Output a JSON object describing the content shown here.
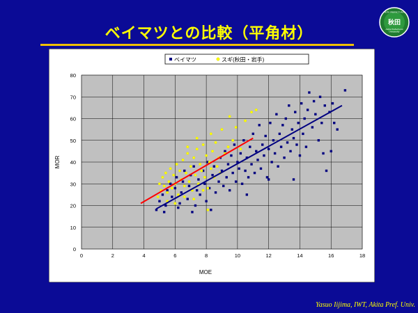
{
  "slide": {
    "title": "ベイマツとの比較（平角材）",
    "credit": "Yasuo Iijima, IWT, Akita Pref.  Univ."
  },
  "logo": {
    "arc_text": "AKITA PREFECTURAL",
    "mark_text": "秋田",
    "subtext_1": "Akita Prefectural",
    "subtext_2": "University"
  },
  "colors": {
    "background": "#0b0b96",
    "title": "#ffff00",
    "series_bm": "#000080",
    "series_sugi": "#ffff00",
    "fit_bm": "#000080",
    "fit_sugi": "#ff0000",
    "plot_bg": "#c0c0c0",
    "chart_bg": "#ffffff"
  },
  "chart_data": {
    "type": "scatter",
    "title": "",
    "xlabel": "MOE",
    "ylabel": "MOR",
    "xlim": [
      0,
      18
    ],
    "ylim": [
      0,
      80
    ],
    "xticks": [
      0,
      2,
      4,
      6,
      8,
      10,
      12,
      14,
      16,
      18
    ],
    "yticks": [
      0,
      10,
      20,
      30,
      40,
      50,
      60,
      70,
      80
    ],
    "grid": true,
    "legend_position": "top-center",
    "series": [
      {
        "name": "ベイマツ",
        "marker": "square",
        "points": [
          [
            4.8,
            18
          ],
          [
            5.0,
            22
          ],
          [
            5.2,
            25
          ],
          [
            5.4,
            20
          ],
          [
            5.5,
            27
          ],
          [
            5.7,
            30
          ],
          [
            5.8,
            24
          ],
          [
            6.0,
            28
          ],
          [
            6.1,
            33
          ],
          [
            6.2,
            19
          ],
          [
            6.4,
            26
          ],
          [
            6.5,
            31
          ],
          [
            6.6,
            36
          ],
          [
            6.8,
            23
          ],
          [
            6.9,
            29
          ],
          [
            7.0,
            34
          ],
          [
            7.1,
            17
          ],
          [
            7.2,
            38
          ],
          [
            7.4,
            27
          ],
          [
            7.5,
            32
          ],
          [
            7.6,
            25
          ],
          [
            7.8,
            36
          ],
          [
            7.9,
            30
          ],
          [
            8.0,
            22
          ],
          [
            8.1,
            40
          ],
          [
            8.2,
            28
          ],
          [
            8.4,
            34
          ],
          [
            8.5,
            38
          ],
          [
            8.6,
            26
          ],
          [
            8.8,
            31
          ],
          [
            8.9,
            42
          ],
          [
            9.0,
            36
          ],
          [
            9.1,
            29
          ],
          [
            9.2,
            45
          ],
          [
            9.3,
            33
          ],
          [
            9.4,
            39
          ],
          [
            9.5,
            27
          ],
          [
            9.6,
            43
          ],
          [
            9.7,
            35
          ],
          [
            9.8,
            48
          ],
          [
            9.9,
            31
          ],
          [
            10.0,
            40
          ],
          [
            10.1,
            37
          ],
          [
            10.2,
            44
          ],
          [
            10.3,
            30
          ],
          [
            10.4,
            50
          ],
          [
            10.5,
            36
          ],
          [
            10.6,
            42
          ],
          [
            10.7,
            33
          ],
          [
            10.8,
            47
          ],
          [
            10.9,
            39
          ],
          [
            11.0,
            53
          ],
          [
            11.1,
            35
          ],
          [
            11.2,
            45
          ],
          [
            11.3,
            41
          ],
          [
            11.4,
            57
          ],
          [
            11.5,
            37
          ],
          [
            11.6,
            48
          ],
          [
            11.7,
            43
          ],
          [
            11.8,
            52
          ],
          [
            11.9,
            33
          ],
          [
            12.0,
            46
          ],
          [
            12.1,
            58
          ],
          [
            12.2,
            40
          ],
          [
            12.3,
            50
          ],
          [
            12.4,
            44
          ],
          [
            12.5,
            62
          ],
          [
            12.6,
            38
          ],
          [
            12.7,
            53
          ],
          [
            12.8,
            47
          ],
          [
            12.9,
            57
          ],
          [
            13.0,
            42
          ],
          [
            13.1,
            60
          ],
          [
            13.2,
            49
          ],
          [
            13.3,
            66
          ],
          [
            13.4,
            45
          ],
          [
            13.5,
            55
          ],
          [
            13.6,
            51
          ],
          [
            13.7,
            63
          ],
          [
            13.8,
            48
          ],
          [
            13.9,
            58
          ],
          [
            14.0,
            43
          ],
          [
            14.1,
            67
          ],
          [
            14.2,
            53
          ],
          [
            14.3,
            60
          ],
          [
            14.4,
            47
          ],
          [
            14.5,
            64
          ],
          [
            14.6,
            72
          ],
          [
            14.8,
            56
          ],
          [
            14.9,
            68
          ],
          [
            15.0,
            62
          ],
          [
            15.2,
            50
          ],
          [
            15.3,
            70
          ],
          [
            15.4,
            58
          ],
          [
            15.5,
            44
          ],
          [
            15.6,
            66
          ],
          [
            15.7,
            36
          ],
          [
            15.9,
            63
          ],
          [
            16.0,
            45
          ],
          [
            16.1,
            67
          ],
          [
            16.2,
            58
          ],
          [
            16.4,
            55
          ],
          [
            16.9,
            73
          ],
          [
            5.3,
            17
          ],
          [
            6.3,
            21
          ],
          [
            7.3,
            20
          ],
          [
            8.3,
            18
          ],
          [
            12.0,
            32
          ],
          [
            10.6,
            25
          ],
          [
            13.6,
            32
          ]
        ]
      },
      {
        "name": "スギ(秋田・岩手)",
        "marker": "circle",
        "points": [
          [
            4.9,
            24
          ],
          [
            5.0,
            30
          ],
          [
            5.1,
            27
          ],
          [
            5.2,
            33
          ],
          [
            5.3,
            29
          ],
          [
            5.4,
            35
          ],
          [
            5.5,
            26
          ],
          [
            5.6,
            31
          ],
          [
            5.7,
            37
          ],
          [
            5.8,
            28
          ],
          [
            5.9,
            34
          ],
          [
            6.0,
            30
          ],
          [
            6.1,
            39
          ],
          [
            6.2,
            25
          ],
          [
            6.3,
            36
          ],
          [
            6.4,
            32
          ],
          [
            6.5,
            41
          ],
          [
            6.6,
            29
          ],
          [
            6.7,
            35
          ],
          [
            6.8,
            44
          ],
          [
            6.9,
            31
          ],
          [
            7.0,
            38
          ],
          [
            7.1,
            27
          ],
          [
            7.2,
            42
          ],
          [
            7.3,
            34
          ],
          [
            7.4,
            46
          ],
          [
            7.5,
            30
          ],
          [
            7.6,
            39
          ],
          [
            7.7,
            36
          ],
          [
            7.8,
            48
          ],
          [
            7.9,
            33
          ],
          [
            8.0,
            43
          ],
          [
            8.1,
            28
          ],
          [
            8.2,
            40
          ],
          [
            8.3,
            37
          ],
          [
            8.4,
            45
          ],
          [
            8.5,
            33
          ],
          [
            8.6,
            49
          ],
          [
            8.7,
            38
          ],
          [
            8.8,
            42
          ],
          [
            8.9,
            35
          ],
          [
            9.0,
            55
          ],
          [
            9.2,
            44
          ],
          [
            9.4,
            47
          ],
          [
            9.5,
            61
          ],
          [
            9.7,
            50
          ],
          [
            9.9,
            56
          ],
          [
            10.2,
            46
          ],
          [
            10.5,
            59
          ],
          [
            10.9,
            63
          ],
          [
            11.2,
            64
          ],
          [
            5.5,
            22
          ],
          [
            6.0,
            21
          ],
          [
            6.6,
            24
          ],
          [
            7.2,
            23
          ],
          [
            7.8,
            27
          ],
          [
            8.1,
            18
          ],
          [
            6.8,
            47
          ],
          [
            7.4,
            51
          ],
          [
            8.3,
            53
          ]
        ]
      }
    ],
    "trendlines": [
      {
        "series": "ベイマツ",
        "from": [
          4.8,
          18.5
        ],
        "to": [
          16.7,
          66
        ]
      },
      {
        "series": "スギ(秋田・岩手)",
        "from": [
          3.8,
          21
        ],
        "to": [
          11.0,
          51
        ]
      }
    ]
  }
}
